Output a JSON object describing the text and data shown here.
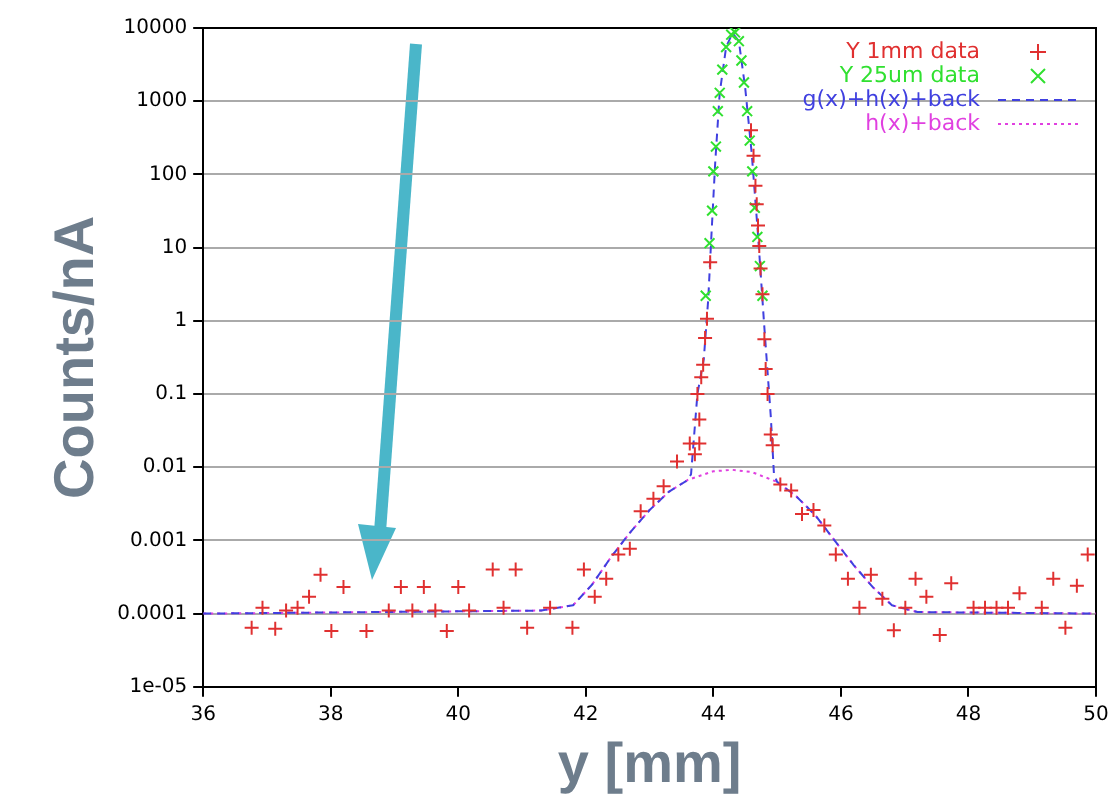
{
  "chart_data": {
    "type": "scatter",
    "xlabel": "y [mm]",
    "ylabel": "Counts/nA",
    "log": "y",
    "grid": "y",
    "legend": "top right",
    "xlim": [
      36,
      50
    ],
    "xticks": [
      36,
      38,
      40,
      42,
      44,
      46,
      48,
      50
    ],
    "ylim": [
      1e-05,
      10000
    ],
    "yticks": [
      {
        "value": 1e-05,
        "label": "1e-05"
      },
      0.0001,
      0.001,
      0.01,
      0.1,
      1,
      10,
      100,
      1000,
      10000
    ],
    "series": [
      {
        "name": "Y 1mm data",
        "type": "scatter",
        "marker": "cross",
        "color": "#e03030",
        "x": [
          36.76,
          36.93,
          37.13,
          37.3,
          37.48,
          37.66,
          37.84,
          38.01,
          38.2,
          38.56,
          38.91,
          39.1,
          39.28,
          39.46,
          39.64,
          39.82,
          40.0,
          40.17,
          40.54,
          40.71,
          40.9,
          41.08,
          41.44,
          41.79,
          41.97,
          42.14,
          42.32,
          42.51,
          42.69,
          42.86,
          43.06,
          43.22,
          43.43,
          43.63,
          43.71,
          43.78,
          43.78,
          43.75,
          43.81,
          43.84,
          43.87,
          43.9,
          43.95,
          44.59,
          44.63,
          44.66,
          44.68,
          44.7,
          44.72,
          44.74,
          44.77,
          44.8,
          44.82,
          44.85,
          44.9,
          44.93,
          45.05,
          45.22,
          45.39,
          45.57,
          45.74,
          45.92,
          46.11,
          46.29,
          46.47,
          46.65,
          46.83,
          47.01,
          47.17,
          47.34,
          47.55,
          47.73,
          48.08,
          48.26,
          48.44,
          48.62,
          48.8,
          49.15,
          49.33,
          49.52,
          49.7,
          49.87
        ],
        "values": [
          6.4e-05,
          0.00012,
          6.2e-05,
          0.00011,
          0.00012,
          0.00017,
          0.00034,
          5.8e-05,
          0.00023,
          5.8e-05,
          0.00011,
          0.00023,
          0.00011,
          0.00023,
          0.00011,
          5.8e-05,
          0.00023,
          0.00011,
          0.0004,
          0.00012,
          0.0004,
          6.4e-05,
          0.00012,
          6.4e-05,
          0.0004,
          0.00017,
          0.0003,
          0.00064,
          0.00077,
          0.0025,
          0.0037,
          0.0055,
          0.012,
          0.021,
          0.015,
          0.021,
          0.045,
          0.1,
          0.17,
          0.25,
          0.58,
          1.07,
          6.3,
          400,
          180,
          70,
          39,
          20,
          10.5,
          5.2,
          2.3,
          0.56,
          0.22,
          0.1,
          0.028,
          0.02,
          0.0058,
          0.0048,
          0.0023,
          0.0026,
          0.0016,
          0.00064,
          0.0003,
          0.00012,
          0.00034,
          0.00016,
          5.9e-05,
          0.00012,
          0.0003,
          0.00017,
          5.1e-05,
          0.00026,
          0.00012,
          0.00012,
          0.00012,
          0.00012,
          0.00019,
          0.00012,
          0.0003,
          6.4e-05,
          0.00024,
          0.00064
        ]
      },
      {
        "name": "Y 25um data",
        "type": "scatter",
        "marker": "x",
        "color": "#30e030",
        "x": [
          43.88,
          43.94,
          43.98,
          44.0,
          44.04,
          44.07,
          44.1,
          44.14,
          44.2,
          44.28,
          44.34,
          44.4,
          44.44,
          44.48,
          44.53,
          44.57,
          44.61,
          44.65,
          44.69,
          44.73,
          44.77
        ],
        "values": [
          2.2,
          11.5,
          32,
          110,
          240,
          730,
          1300,
          2700,
          5500,
          8100,
          8700,
          6600,
          3600,
          1800,
          730,
          290,
          110,
          35,
          14,
          5.6,
          2.2
        ]
      },
      {
        "name": "g(x)+h(x)+back",
        "type": "line",
        "marker": "none",
        "line_style": "dashed",
        "color": "#4040e0",
        "x": [
          36,
          41.3,
          41.8,
          42.1,
          42.4,
          42.7,
          43.0,
          43.3,
          43.6,
          43.65,
          43.75,
          43.85,
          43.92,
          43.97,
          44.03,
          44.1,
          44.2,
          44.3,
          44.4,
          44.5,
          44.6,
          44.7,
          44.8,
          44.9,
          44.95,
          45.0,
          45.3,
          45.6,
          45.9,
          46.2,
          46.5,
          46.8,
          47.2,
          50
        ],
        "values": [
          0.0001,
          0.00011,
          0.00013,
          0.00025,
          0.0006,
          0.0013,
          0.0026,
          0.0046,
          0.0067,
          0.008,
          0.1,
          0.3,
          2,
          15,
          150,
          1300,
          5500,
          8500,
          6600,
          1500,
          200,
          15,
          0.8,
          0.05,
          0.008,
          0.0063,
          0.004,
          0.0022,
          0.001,
          0.00046,
          0.00023,
          0.00013,
          0.000105,
          0.0001
        ]
      },
      {
        "name": "h(x)+back",
        "type": "line",
        "marker": "none",
        "line_style": "dotted",
        "color": "#e040e0",
        "x": [
          36,
          41.3,
          41.8,
          42.1,
          42.4,
          42.7,
          43.0,
          43.3,
          43.6,
          44.0,
          44.3,
          44.6,
          45.0,
          45.3,
          45.6,
          45.9,
          46.2,
          46.5,
          46.8,
          47.2,
          50
        ],
        "values": [
          0.0001,
          0.00011,
          0.00013,
          0.00025,
          0.0006,
          0.0013,
          0.0026,
          0.0046,
          0.0067,
          0.0088,
          0.0092,
          0.0086,
          0.0063,
          0.004,
          0.0022,
          0.001,
          0.00046,
          0.00023,
          0.00013,
          0.000105,
          0.0001
        ]
      }
    ]
  }
}
